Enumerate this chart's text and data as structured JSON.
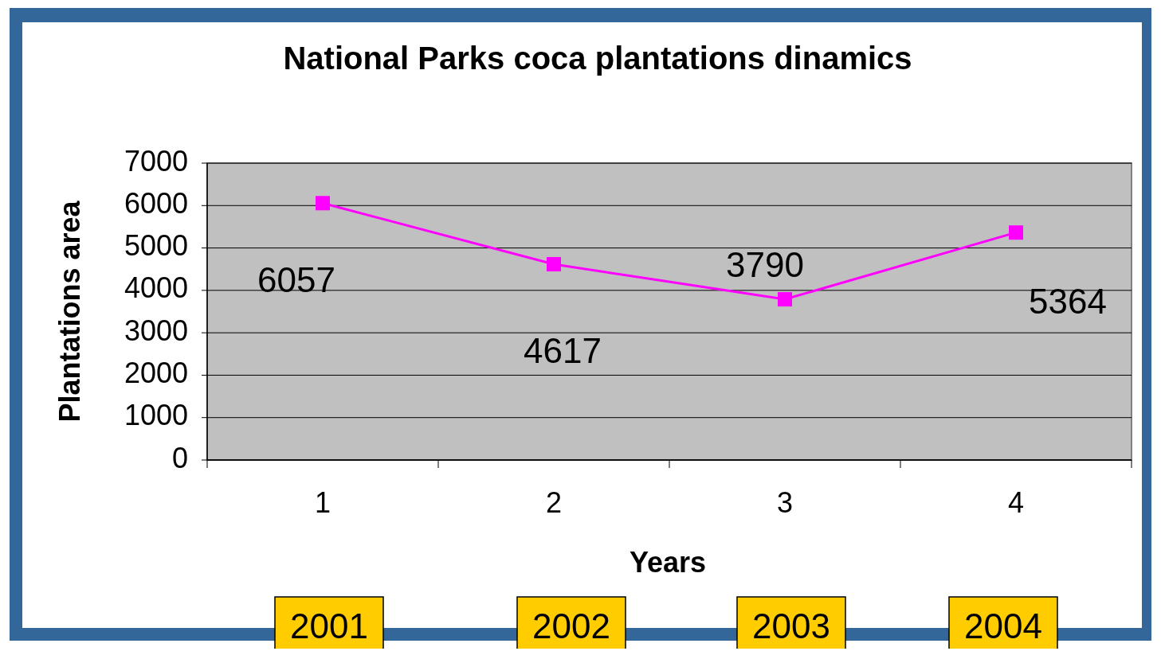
{
  "chart_data": {
    "type": "line",
    "title": "National Parks coca plantations dinamics",
    "xlabel": "Years",
    "ylabel": "Plantations area",
    "categories": [
      "1",
      "2",
      "3",
      "4"
    ],
    "series": [
      {
        "color": "#ff00ff",
        "values": [
          6057,
          4617,
          3790,
          5364
        ]
      }
    ],
    "ylim": [
      0,
      7000
    ],
    "yticks": [
      0,
      1000,
      2000,
      3000,
      4000,
      5000,
      6000,
      7000
    ],
    "grid": "y",
    "marker": "square",
    "data_labels": true,
    "annotations": [
      "2001",
      "2002",
      "2003",
      "2004"
    ]
  }
}
